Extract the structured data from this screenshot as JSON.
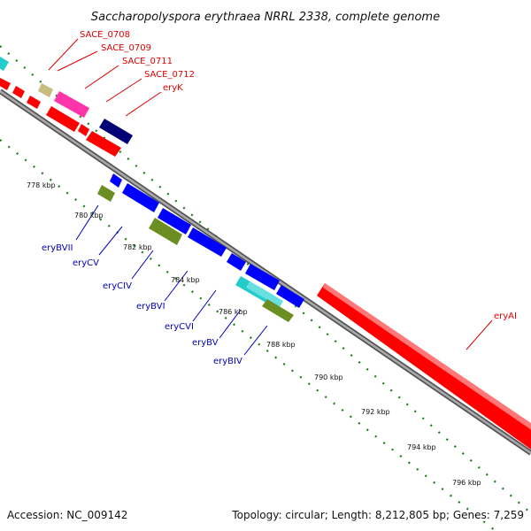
{
  "title": "Saccharopolyspora erythraea NRRL 2338, complete genome",
  "footer": {
    "accession": "Accession: NC_009142",
    "topology": "Topology: circular; Length: 8,212,805 bp; Genes: 7,259"
  },
  "colors": {
    "backbone": "#8a8a8a",
    "ticks": "#1a7a1a",
    "forward_label": "#dd0000",
    "reverse_label": "#0000bb",
    "red": "#ff0000",
    "magenta": "#ff33aa",
    "khaki": "#c8bd80",
    "navy": "#000077",
    "blue": "#0000ff",
    "olive": "#6b8e23",
    "cyan": "#22cccc"
  },
  "scale_ticks": [
    "778 kbp",
    "780 kbp",
    "782 kbp",
    "784 kbp",
    "786 kbp",
    "788 kbp",
    "790 kbp",
    "792 kbp",
    "794 kbp",
    "796 kbp"
  ],
  "forward_labels": [
    "SACE_0708",
    "SACE_0709",
    "SACE_0711",
    "SACE_0712",
    "eryK",
    "eryAI"
  ],
  "reverse_labels": [
    "eryBVII",
    "eryCV",
    "eryCIV",
    "eryBVI",
    "eryCVI",
    "eryBV",
    "eryBIV"
  ]
}
